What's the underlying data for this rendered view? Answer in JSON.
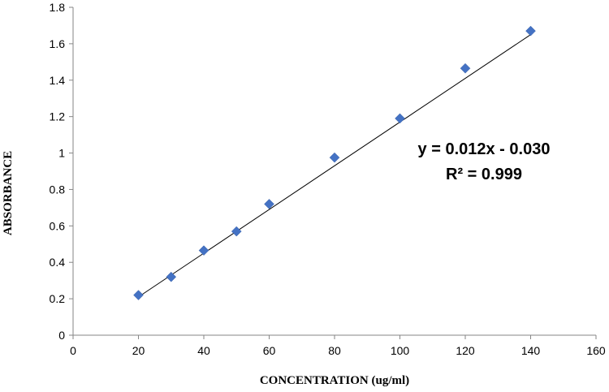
{
  "chart_data": {
    "type": "scatter",
    "xlabel": "CONCENTRATION (ug/ml)",
    "ylabel": "ABSORBANCE",
    "xlim": [
      0,
      160
    ],
    "ylim": [
      0,
      1.8
    ],
    "xticks": [
      0,
      20,
      40,
      60,
      80,
      100,
      120,
      140,
      160
    ],
    "yticks": [
      0,
      0.2,
      0.4,
      0.6,
      0.8,
      1,
      1.2,
      1.4,
      1.6,
      1.8
    ],
    "xtick_labels": [
      "0",
      "20",
      "40",
      "60",
      "80",
      "100",
      "120",
      "140",
      "160"
    ],
    "ytick_labels": [
      "0",
      "0.2",
      "0.4",
      "0.6",
      "0.8",
      "1",
      "1.2",
      "1.4",
      "1.6",
      "1.8"
    ],
    "grid": false,
    "marker": "diamond",
    "marker_color": "#4472C4",
    "trendline_color": "#000000",
    "series": [
      {
        "x": [
          20,
          30,
          40,
          50,
          60,
          80,
          100,
          120,
          140
        ],
        "y": [
          0.22,
          0.32,
          0.465,
          0.57,
          0.72,
          0.975,
          1.19,
          1.465,
          1.67
        ]
      }
    ],
    "trendline": {
      "type": "linear",
      "slope": 0.012,
      "intercept": -0.03,
      "x_range": [
        20,
        140
      ]
    },
    "annotations": {
      "equation": "y = 0.012x - 0.030",
      "r_squared": "R² = 0.999"
    }
  }
}
